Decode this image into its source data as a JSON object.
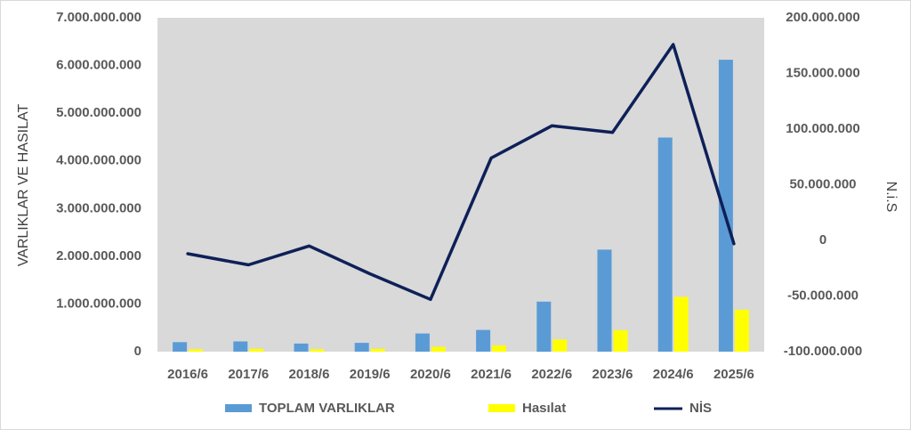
{
  "chart_data": {
    "type": "bar",
    "combo": "bar+line",
    "categories": [
      "2016/6",
      "2017/6",
      "2018/6",
      "2019/6",
      "2020/6",
      "2021/6",
      "2022/6",
      "2023/6",
      "2024/6",
      "2025/6"
    ],
    "series": [
      {
        "name": "TOPLAM VARLIKLAR",
        "type": "bar",
        "axis": "left",
        "color": "#5b9bd5",
        "values": [
          200000000,
          215000000,
          170000000,
          185000000,
          380000000,
          455000000,
          1050000000,
          2140000000,
          4490000000,
          6120000000
        ]
      },
      {
        "name": "Hasılat",
        "type": "bar",
        "axis": "left",
        "color": "#ffff00",
        "values": [
          50000000,
          60000000,
          50000000,
          60000000,
          100000000,
          130000000,
          255000000,
          450000000,
          1150000000,
          880000000
        ]
      },
      {
        "name": "NİS",
        "type": "line",
        "axis": "right",
        "color": "#0e2058",
        "values": [
          -12000000,
          -22000000,
          -5000000,
          -30000000,
          -53000000,
          74000000,
          103000000,
          97000000,
          176000000,
          -3000000
        ]
      }
    ],
    "y_left": {
      "label": "VARLIKLAR VE HASILAT",
      "range": [
        0,
        7000000000
      ],
      "ticks": [
        "0",
        "1.000.000.000",
        "2.000.000.000",
        "3.000.000.000",
        "4.000.000.000",
        "5.000.000.000",
        "6.000.000.000",
        "7.000.000.000"
      ]
    },
    "y_right": {
      "label": "N.i.S",
      "range": [
        -100000000,
        200000000
      ],
      "ticks": [
        "-100.000.000",
        "-50.000.000",
        "0",
        "50.000.000",
        "100.000.000",
        "150.000.000",
        "200.000.000"
      ]
    },
    "plot_background": "#d9d9d9",
    "grid": false,
    "legend": "bottom"
  }
}
